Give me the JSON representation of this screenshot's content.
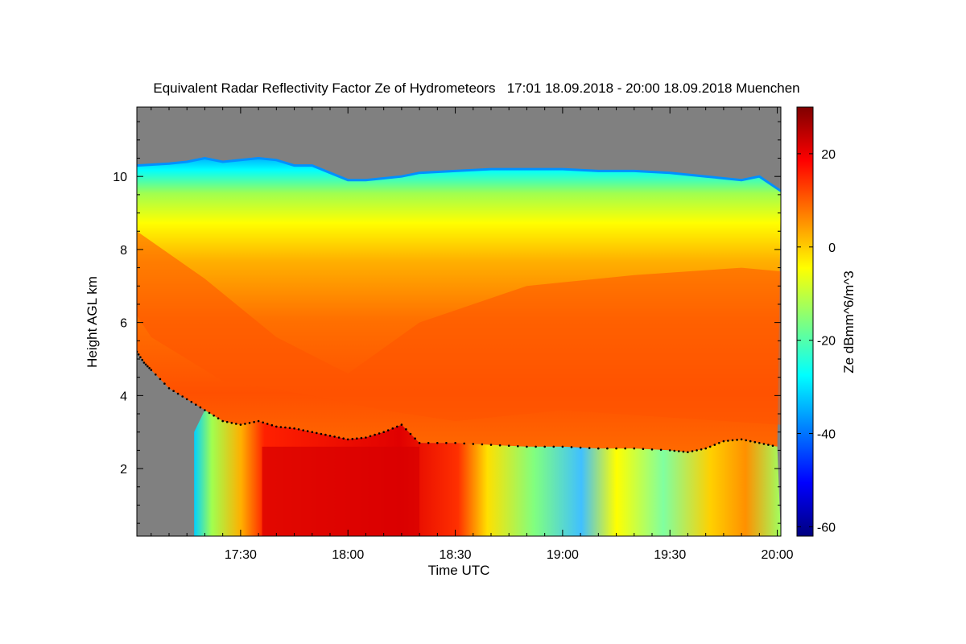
{
  "chart_data": {
    "type": "heatmap",
    "title": "Equivalent Radar Reflectivity Factor Ze of Hydrometeors   17:01 18.09.2018 - 20:00 18.09.2018 Muenchen",
    "xlabel": "Time UTC",
    "ylabel": "Height AGL km",
    "colorbar_label": "Ze dBmm^6/m^3",
    "x_start": "17:01",
    "x_end": "20:00",
    "xlim_minutes_utc": [
      1021,
      1201
    ],
    "x_ticks": [
      {
        "label": "17:30",
        "minute": 1050
      },
      {
        "label": "18:00",
        "minute": 1080
      },
      {
        "label": "18:30",
        "minute": 1110
      },
      {
        "label": "19:00",
        "minute": 1140
      },
      {
        "label": "19:30",
        "minute": 1170
      },
      {
        "label": "20:00",
        "minute": 1200
      }
    ],
    "ylim": [
      0.15,
      11.9
    ],
    "y_ticks": [
      {
        "label": "2",
        "value": 2
      },
      {
        "label": "4",
        "value": 4
      },
      {
        "label": "6",
        "value": 6
      },
      {
        "label": "8",
        "value": 8
      },
      {
        "label": "10",
        "value": 10
      }
    ],
    "colorbar_range": [
      -62,
      30
    ],
    "colorbar_ticks": [
      {
        "label": "20",
        "value": 20
      },
      {
        "label": "0",
        "value": 0
      },
      {
        "label": "-20",
        "value": -20
      },
      {
        "label": "-40",
        "value": -40
      },
      {
        "label": "-60",
        "value": -60
      }
    ],
    "colormap": [
      "#00007f",
      "#0000ff",
      "#007fff",
      "#00ffff",
      "#7fff7f",
      "#ffff00",
      "#ff7f00",
      "#ff0000",
      "#7f0000"
    ],
    "no_signal_color": "#808080",
    "cloud_top_km": [
      [
        1021,
        10.3
      ],
      [
        1030,
        10.35
      ],
      [
        1035,
        10.4
      ],
      [
        1040,
        10.5
      ],
      [
        1045,
        10.4
      ],
      [
        1050,
        10.45
      ],
      [
        1055,
        10.5
      ],
      [
        1060,
        10.45
      ],
      [
        1065,
        10.3
      ],
      [
        1070,
        10.3
      ],
      [
        1075,
        10.1
      ],
      [
        1080,
        9.9
      ],
      [
        1085,
        9.9
      ],
      [
        1090,
        9.95
      ],
      [
        1095,
        10.0
      ],
      [
        1100,
        10.1
      ],
      [
        1110,
        10.15
      ],
      [
        1120,
        10.2
      ],
      [
        1130,
        10.2
      ],
      [
        1140,
        10.2
      ],
      [
        1150,
        10.15
      ],
      [
        1160,
        10.15
      ],
      [
        1170,
        10.1
      ],
      [
        1180,
        10.0
      ],
      [
        1190,
        9.9
      ],
      [
        1195,
        10.0
      ],
      [
        1201,
        9.6
      ]
    ],
    "melting_layer_km": [
      [
        1021,
        5.2
      ],
      [
        1023,
        4.9
      ],
      [
        1025,
        4.7
      ],
      [
        1030,
        4.2
      ],
      [
        1035,
        3.9
      ],
      [
        1040,
        3.6
      ],
      [
        1045,
        3.3
      ],
      [
        1050,
        3.2
      ],
      [
        1055,
        3.3
      ],
      [
        1060,
        3.15
      ],
      [
        1065,
        3.1
      ],
      [
        1070,
        3.0
      ],
      [
        1075,
        2.9
      ],
      [
        1080,
        2.8
      ],
      [
        1085,
        2.85
      ],
      [
        1090,
        3.0
      ],
      [
        1095,
        3.2
      ],
      [
        1100,
        2.7
      ],
      [
        1110,
        2.7
      ],
      [
        1120,
        2.65
      ],
      [
        1130,
        2.6
      ],
      [
        1140,
        2.6
      ],
      [
        1150,
        2.55
      ],
      [
        1160,
        2.55
      ],
      [
        1170,
        2.5
      ],
      [
        1175,
        2.45
      ],
      [
        1180,
        2.55
      ],
      [
        1185,
        2.75
      ],
      [
        1190,
        2.8
      ],
      [
        1195,
        2.7
      ],
      [
        1200,
        2.6
      ]
    ],
    "no_signal_regions": [
      {
        "name": "top",
        "note": "above cloud top"
      },
      {
        "name": "low-left",
        "x_range_minutes": [
          1021,
          1037
        ],
        "y_range_km": [
          0.15,
          3.6
        ]
      }
    ],
    "strong_echo_band": {
      "x_range_minutes": [
        1050,
        1110
      ],
      "y_range_km": [
        0.15,
        2.7
      ],
      "ze_dbz": 25
    }
  }
}
